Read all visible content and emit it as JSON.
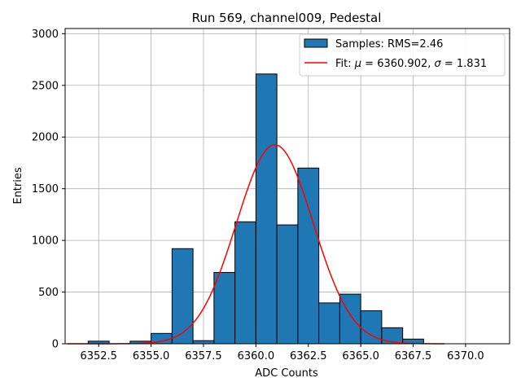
{
  "chart_data": {
    "type": "bar",
    "title": "Run 569, channel009, Pedestal",
    "xlabel": "ADC Counts",
    "ylabel": "Entries",
    "xlim": [
      6350.9,
      6372.1
    ],
    "ylim": [
      0,
      3050
    ],
    "xticks": [
      6352.5,
      6355.0,
      6357.5,
      6360.0,
      6362.5,
      6365.0,
      6367.5,
      6370.0
    ],
    "xtick_labels": [
      "6352.5",
      "6355.0",
      "6357.5",
      "6360.0",
      "6362.5",
      "6365.0",
      "6367.5",
      "6370.0"
    ],
    "yticks": [
      0,
      500,
      1000,
      1500,
      2000,
      2500,
      3000
    ],
    "ytick_labels": [
      "0",
      "500",
      "1000",
      "1500",
      "2000",
      "2500",
      "3000"
    ],
    "grid": true,
    "bar_color": "#1f77b4",
    "fit_color": "#ff0000",
    "histogram": {
      "name": "Samples: RMS=2.46",
      "bin_edges": [
        6352,
        6353,
        6354,
        6355,
        6356,
        6357,
        6358,
        6359,
        6360,
        6361,
        6362,
        6363,
        6364,
        6365,
        6366,
        6367,
        6368,
        6369,
        6370,
        6371
      ],
      "counts": [
        25,
        0,
        25,
        100,
        920,
        30,
        690,
        1180,
        2610,
        1150,
        1700,
        395,
        480,
        320,
        155,
        45,
        0,
        0,
        0
      ]
    },
    "fit": {
      "name_prefix": "Fit: ",
      "mu_symbol": "μ",
      "mu_value": " = 6360.902, ",
      "sigma_symbol": "σ",
      "sigma_value": " = 1.831",
      "mu": 6360.902,
      "sigma": 1.831,
      "amplitude": 1925,
      "x_range": [
        6351,
        6369
      ]
    },
    "legend_position": "top-right"
  }
}
